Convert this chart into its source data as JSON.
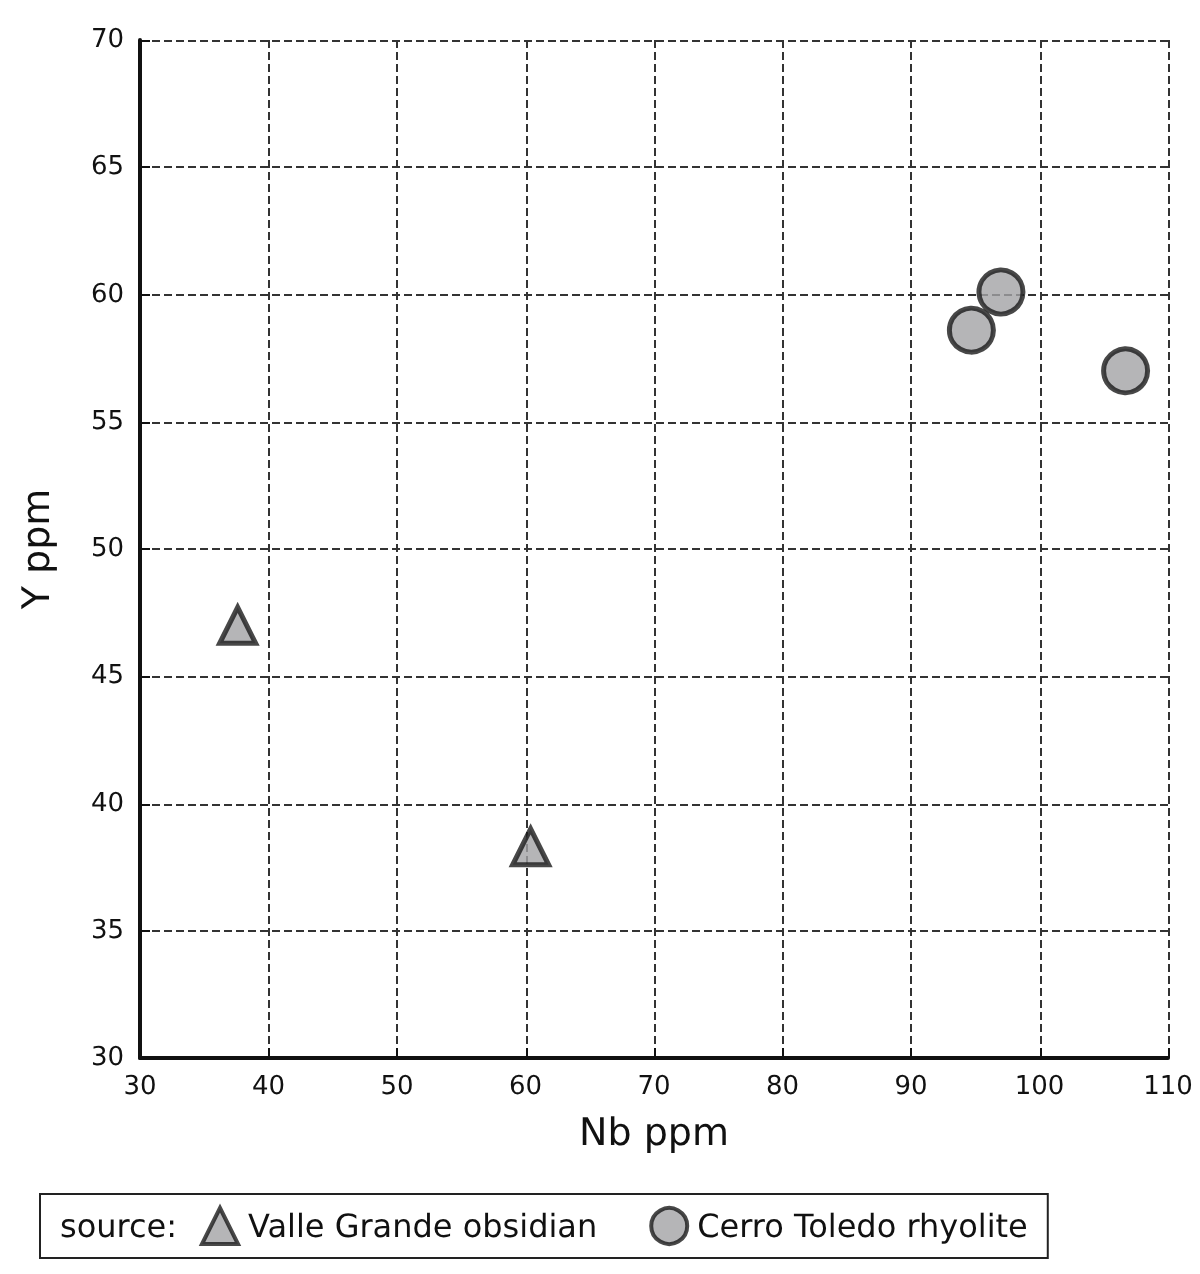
{
  "chart_data": {
    "type": "scatter",
    "xlabel": "Nb ppm",
    "ylabel": "Y ppm",
    "legend_title": "source:",
    "series": [
      {
        "name": "Valle Grande obsidian",
        "color": "#a3a3a5",
        "marker": "triangle",
        "x": [
          37.6,
          60.4
        ],
        "values": [
          47.0,
          38.3
        ]
      },
      {
        "name": "Cerro Toledo rhyolite",
        "color": "#a3a3a5",
        "marker": "circle",
        "x": [
          94.7,
          97.0,
          106.7
        ],
        "values": [
          58.6,
          60.1,
          57.0
        ]
      }
    ],
    "xlim": [
      30,
      110
    ],
    "xticks": [
      30,
      40,
      50,
      60,
      70,
      80,
      90,
      100,
      110
    ],
    "ylim": [
      30,
      70
    ],
    "yticks": [
      30,
      35,
      40,
      45,
      50,
      55,
      60,
      65,
      70
    ],
    "grid": true,
    "legend": "bottom"
  }
}
